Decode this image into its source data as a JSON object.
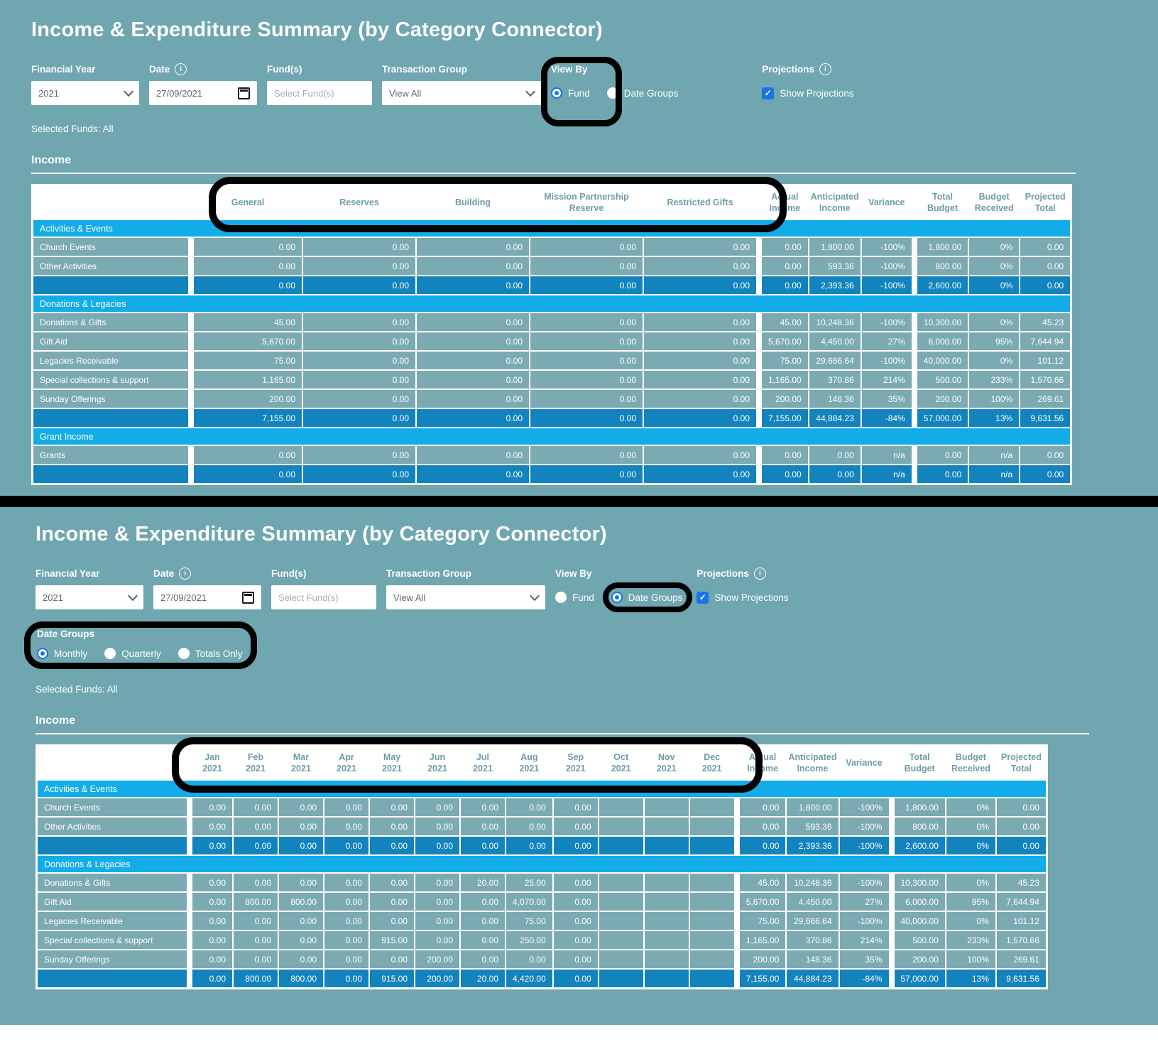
{
  "icons": {
    "info": "i",
    "check": "✓"
  },
  "shared": {
    "title": "Income & Expenditure Summary (by Category Connector)",
    "selected_funds": "Selected Funds: All",
    "income_heading": "Income",
    "filters": {
      "financial_year": {
        "label": "Financial Year",
        "value": "2021"
      },
      "date": {
        "label": "Date",
        "value": "27/09/2021"
      },
      "funds": {
        "label": "Fund(s)",
        "placeholder": "Select Fund(s)"
      },
      "transaction_group": {
        "label": "Transaction Group",
        "value": "View All"
      },
      "view_by": {
        "label": "View By",
        "fund_option": "Fund",
        "date_groups_option": "Date Groups"
      },
      "projections": {
        "label": "Projections",
        "checkbox_label": "Show Projections",
        "checked": true
      }
    }
  },
  "view1": {
    "view_by_selected": "Fund"
  },
  "view2": {
    "view_by_selected": "Date Groups",
    "date_groups": {
      "label": "Date Groups",
      "options": [
        "Monthly",
        "Quarterly",
        "Totals Only"
      ],
      "selected": "Monthly"
    }
  },
  "fund_table": {
    "value_columns": [
      {
        "l1": "General"
      },
      {
        "l1": "Reserves"
      },
      {
        "l1": "Building"
      },
      {
        "l1": "Mission Partnership Reserve"
      },
      {
        "l1": "Restricted Gifts"
      }
    ],
    "summary_columns": [
      "Actual Income",
      "Anticipated Income",
      "Variance",
      "Total Budget",
      "Budget Received",
      "Projected Total"
    ],
    "sections": [
      {
        "name": "Activities & Events",
        "rows": [
          {
            "label": "Church Events",
            "values": [
              "0.00",
              "0.00",
              "0.00",
              "0.00",
              "0.00"
            ],
            "summary": [
              "0.00",
              "1,800.00",
              "-100%",
              "1,800.00",
              "0%",
              "0.00"
            ]
          },
          {
            "label": "Other Activities",
            "values": [
              "0.00",
              "0.00",
              "0.00",
              "0.00",
              "0.00"
            ],
            "summary": [
              "0.00",
              "593.36",
              "-100%",
              "800.00",
              "0%",
              "0.00"
            ]
          }
        ],
        "total": {
          "values": [
            "0.00",
            "0.00",
            "0.00",
            "0.00",
            "0.00"
          ],
          "summary": [
            "0.00",
            "2,393.36",
            "-100%",
            "2,600.00",
            "0%",
            "0.00"
          ]
        }
      },
      {
        "name": "Donations & Legacies",
        "rows": [
          {
            "label": "Donations & Gifts",
            "values": [
              "45.00",
              "0.00",
              "0.00",
              "0.00",
              "0.00"
            ],
            "summary": [
              "45.00",
              "10,248.36",
              "-100%",
              "10,300.00",
              "0%",
              "45.23"
            ]
          },
          {
            "label": "Gift Aid",
            "values": [
              "5,670.00",
              "0.00",
              "0.00",
              "0.00",
              "0.00"
            ],
            "summary": [
              "5,670.00",
              "4,450.00",
              "27%",
              "6,000.00",
              "95%",
              "7,644.94"
            ]
          },
          {
            "label": "Legacies Receivable",
            "values": [
              "75.00",
              "0.00",
              "0.00",
              "0.00",
              "0.00"
            ],
            "summary": [
              "75.00",
              "29,666.64",
              "-100%",
              "40,000.00",
              "0%",
              "101.12"
            ]
          },
          {
            "label": "Special collections & support",
            "values": [
              "1,165.00",
              "0.00",
              "0.00",
              "0.00",
              "0.00"
            ],
            "summary": [
              "1,165.00",
              "370.86",
              "214%",
              "500.00",
              "233%",
              "1,570.66"
            ]
          },
          {
            "label": "Sunday Offerings",
            "values": [
              "200.00",
              "0.00",
              "0.00",
              "0.00",
              "0.00"
            ],
            "summary": [
              "200.00",
              "148.36",
              "35%",
              "200.00",
              "100%",
              "269.61"
            ]
          }
        ],
        "total": {
          "values": [
            "7,155.00",
            "0.00",
            "0.00",
            "0.00",
            "0.00"
          ],
          "summary": [
            "7,155.00",
            "44,884.23",
            "-84%",
            "57,000.00",
            "13%",
            "9,631.56"
          ]
        }
      },
      {
        "name": "Grant Income",
        "rows": [
          {
            "label": "Grants",
            "values": [
              "0.00",
              "0.00",
              "0.00",
              "0.00",
              "0.00"
            ],
            "summary": [
              "0.00",
              "0.00",
              "n/a",
              "0.00",
              "n/a",
              "0.00"
            ]
          }
        ],
        "total": {
          "values": [
            "0.00",
            "0.00",
            "0.00",
            "0.00",
            "0.00"
          ],
          "summary": [
            "0.00",
            "0.00",
            "n/a",
            "0.00",
            "n/a",
            "0.00"
          ]
        }
      }
    ]
  },
  "month_table": {
    "value_columns": [
      {
        "l1": "Jan",
        "l2": "2021"
      },
      {
        "l1": "Feb",
        "l2": "2021"
      },
      {
        "l1": "Mar",
        "l2": "2021"
      },
      {
        "l1": "Apr",
        "l2": "2021"
      },
      {
        "l1": "May",
        "l2": "2021"
      },
      {
        "l1": "Jun",
        "l2": "2021"
      },
      {
        "l1": "Jul",
        "l2": "2021"
      },
      {
        "l1": "Aug",
        "l2": "2021"
      },
      {
        "l1": "Sep",
        "l2": "2021"
      },
      {
        "l1": "Oct",
        "l2": "2021"
      },
      {
        "l1": "Nov",
        "l2": "2021"
      },
      {
        "l1": "Dec",
        "l2": "2021"
      }
    ],
    "summary_columns": [
      "Actual Income",
      "Anticipated Income",
      "Variance",
      "Total Budget",
      "Budget Received",
      "Projected Total"
    ],
    "sections": [
      {
        "name": "Activities & Events",
        "rows": [
          {
            "label": "Church Events",
            "values": [
              "0.00",
              "0.00",
              "0.00",
              "0.00",
              "0.00",
              "0.00",
              "0.00",
              "0.00",
              "0.00",
              "",
              "",
              ""
            ],
            "summary": [
              "0.00",
              "1,800.00",
              "-100%",
              "1,800.00",
              "0%",
              "0.00"
            ]
          },
          {
            "label": "Other Activities",
            "values": [
              "0.00",
              "0.00",
              "0.00",
              "0.00",
              "0.00",
              "0.00",
              "0.00",
              "0.00",
              "0.00",
              "",
              "",
              ""
            ],
            "summary": [
              "0.00",
              "593.36",
              "-100%",
              "800.00",
              "0%",
              "0.00"
            ]
          }
        ],
        "total": {
          "values": [
            "0.00",
            "0.00",
            "0.00",
            "0.00",
            "0.00",
            "0.00",
            "0.00",
            "0.00",
            "0.00",
            "",
            "",
            ""
          ],
          "summary": [
            "0.00",
            "2,393.36",
            "-100%",
            "2,600.00",
            "0%",
            "0.00"
          ]
        }
      },
      {
        "name": "Donations & Legacies",
        "rows": [
          {
            "label": "Donations & Gifts",
            "values": [
              "0.00",
              "0.00",
              "0.00",
              "0.00",
              "0.00",
              "0.00",
              "20.00",
              "25.00",
              "0.00",
              "",
              "",
              ""
            ],
            "summary": [
              "45.00",
              "10,248.36",
              "-100%",
              "10,300.00",
              "0%",
              "45.23"
            ]
          },
          {
            "label": "Gift Aid",
            "values": [
              "0.00",
              "800.00",
              "800.00",
              "0.00",
              "0.00",
              "0.00",
              "0.00",
              "4,070.00",
              "0.00",
              "",
              "",
              ""
            ],
            "summary": [
              "5,670.00",
              "4,450.00",
              "27%",
              "6,000.00",
              "95%",
              "7,644.94"
            ]
          },
          {
            "label": "Legacies Receivable",
            "values": [
              "0.00",
              "0.00",
              "0.00",
              "0.00",
              "0.00",
              "0.00",
              "0.00",
              "75.00",
              "0.00",
              "",
              "",
              ""
            ],
            "summary": [
              "75.00",
              "29,666.64",
              "-100%",
              "40,000.00",
              "0%",
              "101.12"
            ]
          },
          {
            "label": "Special collections & support",
            "values": [
              "0.00",
              "0.00",
              "0.00",
              "0.00",
              "915.00",
              "0.00",
              "0.00",
              "250.00",
              "0.00",
              "",
              "",
              ""
            ],
            "summary": [
              "1,165.00",
              "370.86",
              "214%",
              "500.00",
              "233%",
              "1,570.66"
            ]
          },
          {
            "label": "Sunday Offerings",
            "values": [
              "0.00",
              "0.00",
              "0.00",
              "0.00",
              "0.00",
              "200.00",
              "0.00",
              "0.00",
              "0.00",
              "",
              "",
              ""
            ],
            "summary": [
              "200.00",
              "148.36",
              "35%",
              "200.00",
              "100%",
              "269.61"
            ]
          }
        ],
        "total": {
          "values": [
            "0.00",
            "800.00",
            "800.00",
            "0.00",
            "915.00",
            "200.00",
            "20.00",
            "4,420.00",
            "0.00",
            "",
            "",
            ""
          ],
          "summary": [
            "7,155.00",
            "44,884.23",
            "-84%",
            "57,000.00",
            "13%",
            "9,631.56"
          ]
        }
      }
    ]
  },
  "colors": {
    "page_background": "#6fa6b0",
    "section_header_blue": "#12ace8",
    "data_cell_teal": "#7caab3",
    "total_row_blue": "#1383bd",
    "column_header_text": "#6d9caa",
    "radio_checkbox_blue": "#1a73e8",
    "annotation_black": "#000000"
  }
}
